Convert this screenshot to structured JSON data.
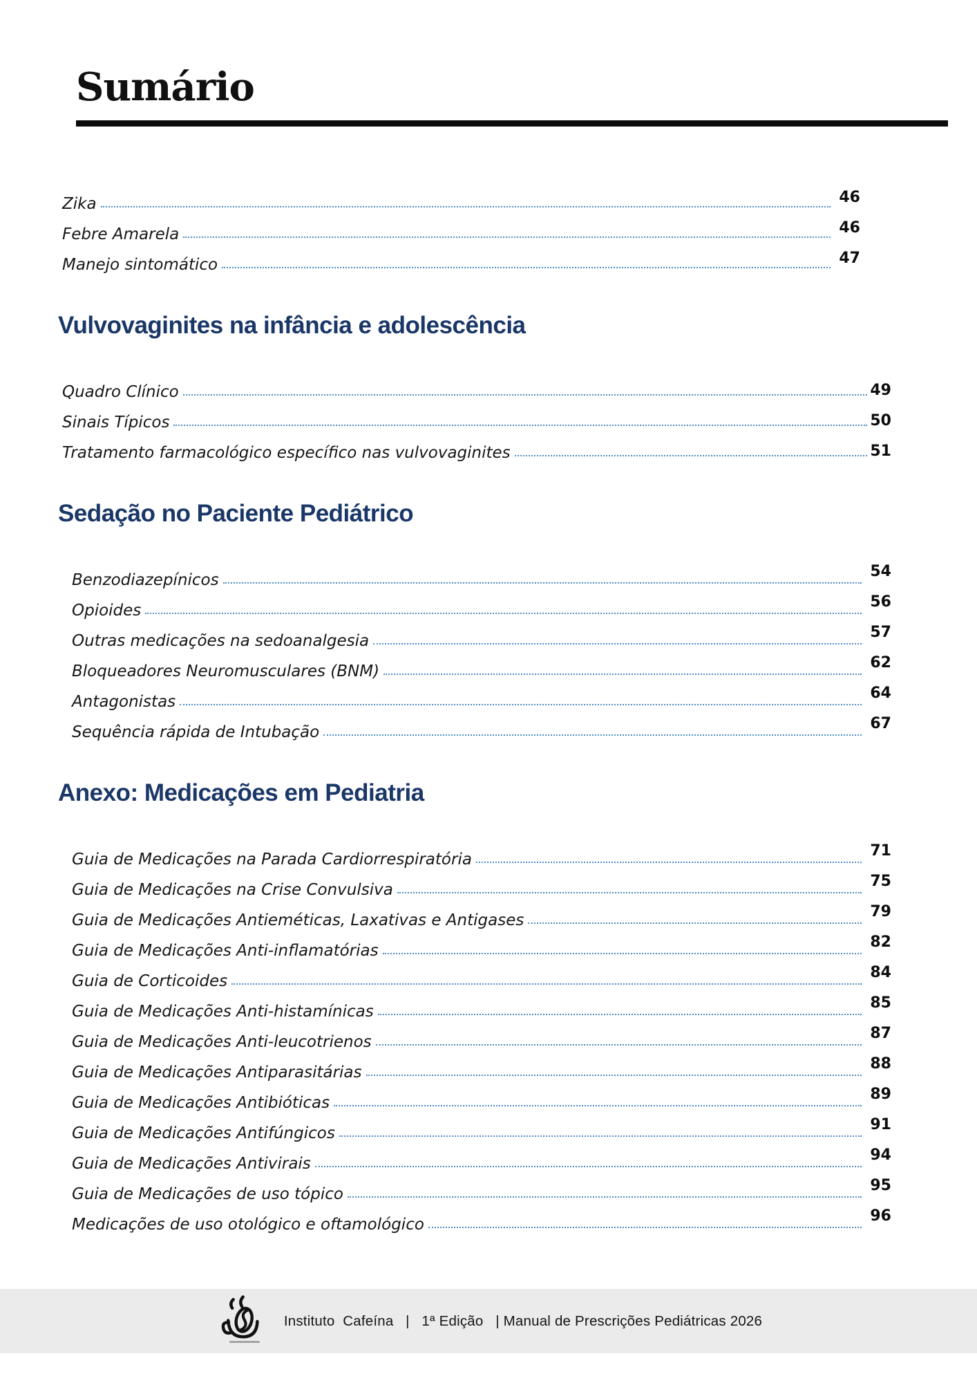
{
  "page": {
    "title": "Sumário",
    "footer": {
      "logo_icon": "coffee-cup-icon",
      "text": "Instituto  Cafeína   |   1ª Edição   | Manual de Prescrições Pediátricas 2026"
    }
  },
  "colors": {
    "heading": "#1A3768",
    "leader_dots": "#4E8AC9",
    "footer_bg": "#EBEBEB",
    "title_rule": "#0B0B0B"
  },
  "toc": {
    "groups": [
      {
        "heading": null,
        "entries": [
          {
            "label": "Zika",
            "page": "46"
          },
          {
            "label": "Febre Amarela",
            "page": "46"
          },
          {
            "label": "Manejo sintomático",
            "page": "47"
          }
        ]
      },
      {
        "heading": "Vulvovaginites na infância e adolescência",
        "entries": [
          {
            "label": "Quadro Clínico",
            "page": "49"
          },
          {
            "label": "Sinais Típicos",
            "page": "50"
          },
          {
            "label": "Tratamento farmacológico específico nas vulvovaginites",
            "page": "51"
          }
        ]
      },
      {
        "heading": "Sedação no Paciente Pediátrico",
        "entries": [
          {
            "label": "Benzodiazepínicos",
            "page": "54"
          },
          {
            "label": "Opioides",
            "page": "56"
          },
          {
            "label": "Outras medicações na sedoanalgesia",
            "page": "57"
          },
          {
            "label": "Bloqueadores Neuromusculares (BNM)",
            "page": "62"
          },
          {
            "label": "Antagonistas",
            "page": "64"
          },
          {
            "label": "Sequência rápida de Intubação",
            "page": "67"
          }
        ]
      },
      {
        "heading": "Anexo: Medicações em Pediatria",
        "entries": [
          {
            "label": "Guia de Medicações na Parada Cardiorrespiratória",
            "page": "71"
          },
          {
            "label": "Guia de Medicações na Crise Convulsiva",
            "page": "75"
          },
          {
            "label": "Guia de Medicações Antieméticas, Laxativas e Antigases",
            "page": "79"
          },
          {
            "label": "Guia de Medicações Anti-inflamatórias",
            "page": "82"
          },
          {
            "label": "Guia de Corticoides",
            "page": "84"
          },
          {
            "label": "Guia de Medicações Anti-histamínicas",
            "page": "85"
          },
          {
            "label": "Guia de Medicações Anti-leucotrienos",
            "page": "87"
          },
          {
            "label": "Guia de Medicações Antiparasitárias",
            "page": "88"
          },
          {
            "label": "Guia de Medicações Antibióticas",
            "page": "89"
          },
          {
            "label": "Guia de Medicações Antifúngicos",
            "page": "91"
          },
          {
            "label": "Guia de Medicações Antivirais",
            "page": "94"
          },
          {
            "label": "Guia de Medicações de uso tópico",
            "page": "95"
          },
          {
            "label": "Medicações de uso otológico e oftamológico",
            "page": "96"
          }
        ]
      }
    ]
  }
}
